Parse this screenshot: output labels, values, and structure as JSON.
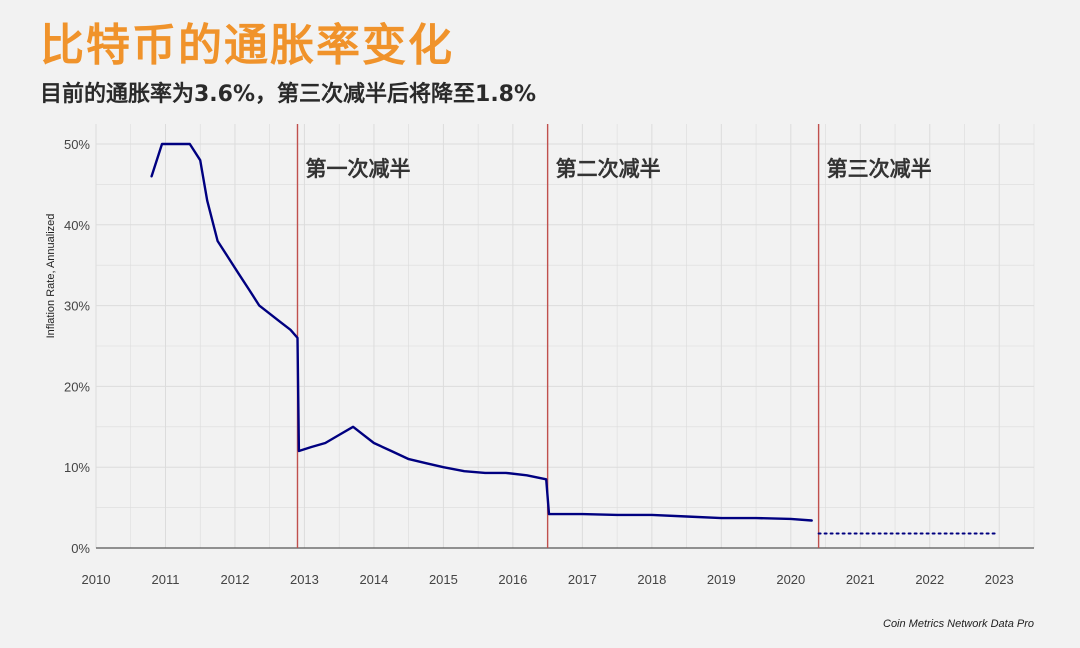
{
  "title": "比特币的通胀率变化",
  "subtitle": "目前的通胀率为3.6%，第三次减半后将降至1.8%",
  "source": "Coin Metrics Network Data Pro",
  "colors": {
    "title": "#f0932b",
    "line": "#000080",
    "halving": "#c0504d",
    "grid": "#dcdcdc",
    "background": "#f2f2f2"
  },
  "chart_data": {
    "type": "line",
    "ylabel": "Inflation Rate, Annualized",
    "xlabel": "",
    "xlim": [
      2010,
      2023.5
    ],
    "ylim": [
      0,
      50
    ],
    "grid": true,
    "x_ticks": [
      "2010",
      "2011",
      "2012",
      "2013",
      "2014",
      "2015",
      "2016",
      "2017",
      "2018",
      "2019",
      "2020",
      "2021",
      "2022",
      "2023"
    ],
    "y_ticks": [
      "0%",
      "10%",
      "20%",
      "30%",
      "40%",
      "50%"
    ],
    "halvings": [
      {
        "x": 2012.9,
        "label": "第一次减半"
      },
      {
        "x": 2016.5,
        "label": "第二次减半"
      },
      {
        "x": 2020.4,
        "label": "第三次减半"
      }
    ],
    "series": [
      {
        "values": [
          [
            2010.8,
            46
          ],
          [
            2010.95,
            50
          ],
          [
            2011.15,
            50
          ],
          [
            2011.35,
            50
          ],
          [
            2011.5,
            48
          ],
          [
            2011.6,
            43
          ],
          [
            2011.75,
            38
          ],
          [
            2011.9,
            36
          ],
          [
            2012.05,
            34
          ],
          [
            2012.2,
            32
          ],
          [
            2012.35,
            30
          ],
          [
            2012.5,
            29
          ],
          [
            2012.65,
            28
          ],
          [
            2012.8,
            27
          ],
          [
            2012.9,
            26
          ],
          [
            2012.92,
            12
          ],
          [
            2013.1,
            12.5
          ],
          [
            2013.3,
            13
          ],
          [
            2013.5,
            14
          ],
          [
            2013.7,
            15
          ],
          [
            2013.85,
            14
          ],
          [
            2014.0,
            13
          ],
          [
            2014.25,
            12
          ],
          [
            2014.5,
            11
          ],
          [
            2014.75,
            10.5
          ],
          [
            2015.0,
            10
          ],
          [
            2015.3,
            9.5
          ],
          [
            2015.6,
            9.3
          ],
          [
            2015.9,
            9.3
          ],
          [
            2016.2,
            9
          ],
          [
            2016.48,
            8.5
          ],
          [
            2016.52,
            4.2
          ],
          [
            2017.0,
            4.2
          ],
          [
            2017.5,
            4.1
          ],
          [
            2018.0,
            4.1
          ],
          [
            2018.5,
            3.9
          ],
          [
            2019.0,
            3.7
          ],
          [
            2019.5,
            3.7
          ],
          [
            2020.0,
            3.6
          ],
          [
            2020.3,
            3.4
          ]
        ]
      },
      {
        "line_style": "dotted",
        "values": [
          [
            2020.4,
            1.8
          ],
          [
            2021.0,
            1.8
          ],
          [
            2022.0,
            1.8
          ],
          [
            2022.95,
            1.8
          ]
        ]
      }
    ]
  }
}
